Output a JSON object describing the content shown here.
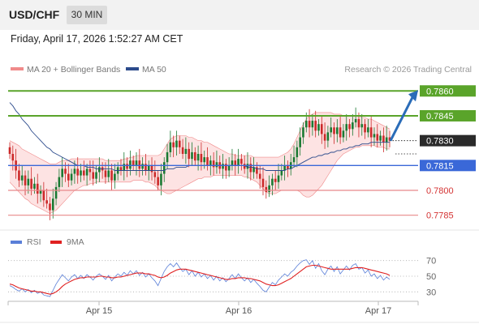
{
  "header": {
    "symbol": "USD/CHF",
    "timeframe": "30 MIN",
    "datetime": "Friday, April 17, 2026 1:52:27 AM CET"
  },
  "main_legend": {
    "bb_label": "MA 20 + Bollinger Bands",
    "ma50_label": "MA 50",
    "credit": "Research © 2026 Trading Central"
  },
  "rsi_legend": {
    "rsi_label": "RSI",
    "ma9_label": "9MA"
  },
  "colors": {
    "bullish_candle": "#1a7a33",
    "bearish_candle": "#cc2a2a",
    "resistance": "#5aa42a",
    "support": "#e8898a",
    "pivot": "#3a68d8",
    "ma50": "#2c4b8c",
    "bb_fill": "#fde3e3",
    "bb_line": "#f08a8a",
    "arrow": "#2a6cb8",
    "rsi": "#5a7fd8",
    "rsi_ma": "#e02020",
    "current_price_bg": "#2a2a2a"
  },
  "chart_data": [
    {
      "type": "candlestick",
      "title": "USD/CHF",
      "timeframe": "30 MIN",
      "x_tick_labels": [
        "Apr 15",
        "Apr 16",
        "Apr 17"
      ],
      "ylim": [
        0.7778,
        0.7866
      ],
      "current_price": 0.783,
      "levels": [
        {
          "value": 0.786,
          "label": "0.7860",
          "kind": "resistance"
        },
        {
          "value": 0.7845,
          "label": "0.7845",
          "kind": "resistance"
        },
        {
          "value": 0.7815,
          "label": "0.7815",
          "kind": "pivot"
        },
        {
          "value": 0.78,
          "label": "0.7800",
          "kind": "support"
        },
        {
          "value": 0.7785,
          "label": "0.7785",
          "kind": "support"
        }
      ],
      "current_price_label": "0.7830",
      "projection": {
        "from": 0.783,
        "to": 0.786
      },
      "closes": [
        0.7822,
        0.7818,
        0.7812,
        0.7806,
        0.7809,
        0.7803,
        0.7807,
        0.7801,
        0.7804,
        0.7798,
        0.78,
        0.7794,
        0.7792,
        0.7788,
        0.7795,
        0.7802,
        0.7808,
        0.7813,
        0.781,
        0.7806,
        0.781,
        0.7813,
        0.7809,
        0.7812,
        0.7809,
        0.7813,
        0.7811,
        0.7807,
        0.7811,
        0.7814,
        0.7812,
        0.7808,
        0.7812,
        0.7806,
        0.781,
        0.7814,
        0.7812,
        0.7816,
        0.7813,
        0.7818,
        0.7815,
        0.7818,
        0.7813,
        0.7816,
        0.7812,
        0.7815,
        0.7811,
        0.7808,
        0.7803,
        0.781,
        0.7817,
        0.7823,
        0.7829,
        0.7826,
        0.783,
        0.7826,
        0.7822,
        0.7825,
        0.7819,
        0.7823,
        0.7818,
        0.7822,
        0.7817,
        0.782,
        0.7815,
        0.7818,
        0.7814,
        0.7817,
        0.7813,
        0.7816,
        0.7812,
        0.7815,
        0.7818,
        0.7815,
        0.7819,
        0.7816,
        0.7813,
        0.7816,
        0.7811,
        0.7814,
        0.781,
        0.7807,
        0.7802,
        0.7799,
        0.7803,
        0.7807,
        0.7805,
        0.7809,
        0.7812,
        0.7815,
        0.7813,
        0.7817,
        0.782,
        0.7826,
        0.7832,
        0.7838,
        0.7842,
        0.7838,
        0.7842,
        0.7836,
        0.784,
        0.7834,
        0.783,
        0.7835,
        0.7838,
        0.7834,
        0.7838,
        0.7832,
        0.7836,
        0.784,
        0.7837,
        0.7841,
        0.7843,
        0.7838,
        0.784,
        0.7835,
        0.7838,
        0.7832,
        0.7834,
        0.783,
        0.7833,
        0.7829,
        0.7832,
        0.783
      ],
      "ma50": [
        0.7853,
        0.7851,
        0.7848,
        0.7846,
        0.7843,
        0.7841,
        0.7839,
        0.7836,
        0.7834,
        0.7832,
        0.783,
        0.7828,
        0.7826,
        0.7825,
        0.7823,
        0.7822,
        0.7821,
        0.782,
        0.7819,
        0.7818,
        0.7817,
        0.7816,
        0.7815,
        0.7815,
        0.7815,
        0.7814,
        0.7814,
        0.7814,
        0.7813,
        0.7813,
        0.7813,
        0.7813,
        0.7813,
        0.7813,
        0.7812,
        0.7812,
        0.7812,
        0.7812,
        0.7812,
        0.7812,
        0.7812,
        0.7812,
        0.7812,
        0.7812,
        0.7812,
        0.7812,
        0.7812,
        0.7812,
        0.7812,
        0.7812,
        0.7812,
        0.7813,
        0.7813,
        0.7813,
        0.7814,
        0.7814,
        0.7814,
        0.7814,
        0.7815,
        0.7815,
        0.7815,
        0.7815,
        0.7815,
        0.7815,
        0.7815,
        0.7815,
        0.7815,
        0.7815,
        0.7815,
        0.7815,
        0.7815,
        0.7815,
        0.7815,
        0.7815,
        0.7815,
        0.7815,
        0.7815,
        0.7814,
        0.7814,
        0.7814,
        0.7813,
        0.7813,
        0.7813,
        0.7812,
        0.7812,
        0.7812,
        0.7812,
        0.7812,
        0.7812,
        0.7812,
        0.7813,
        0.7813,
        0.7814,
        0.7815,
        0.7816,
        0.7817,
        0.7818,
        0.7819,
        0.782,
        0.782,
        0.7821,
        0.7821,
        0.7822,
        0.7822,
        0.7823,
        0.7823,
        0.7824,
        0.7824,
        0.7825,
        0.7825,
        0.7826,
        0.7826,
        0.7827,
        0.7827,
        0.7828,
        0.7828,
        0.7828,
        0.7829,
        0.7829,
        0.7829,
        0.7829,
        0.7829,
        0.7829,
        0.7829
      ],
      "bb_upper": [
        0.783,
        0.7829,
        0.7828,
        0.7827,
        0.7825,
        0.7824,
        0.7823,
        0.7822,
        0.7821,
        0.782,
        0.7819,
        0.7818,
        0.7817,
        0.7816,
        0.7816,
        0.7816,
        0.7817,
        0.7818,
        0.7818,
        0.7818,
        0.7819,
        0.7819,
        0.7819,
        0.7819,
        0.7819,
        0.7819,
        0.7819,
        0.7819,
        0.7819,
        0.7819,
        0.7819,
        0.7818,
        0.7818,
        0.7818,
        0.7818,
        0.7818,
        0.7818,
        0.7819,
        0.7819,
        0.782,
        0.782,
        0.7821,
        0.7821,
        0.7821,
        0.7821,
        0.7821,
        0.7821,
        0.7821,
        0.7821,
        0.7822,
        0.7825,
        0.7828,
        0.7831,
        0.7832,
        0.7833,
        0.7833,
        0.7833,
        0.7833,
        0.7832,
        0.7832,
        0.7831,
        0.783,
        0.783,
        0.7829,
        0.7829,
        0.7828,
        0.7827,
        0.7826,
        0.7825,
        0.7824,
        0.7823,
        0.7822,
        0.7822,
        0.7821,
        0.7821,
        0.7821,
        0.7821,
        0.7821,
        0.7821,
        0.782,
        0.782,
        0.782,
        0.782,
        0.782,
        0.782,
        0.782,
        0.782,
        0.782,
        0.7821,
        0.7822,
        0.7823,
        0.7825,
        0.7828,
        0.7832,
        0.7836,
        0.784,
        0.7843,
        0.7845,
        0.7846,
        0.7847,
        0.7847,
        0.7847,
        0.7847,
        0.7847,
        0.7847,
        0.7846,
        0.7846,
        0.7846,
        0.7845,
        0.7845,
        0.7845,
        0.7845,
        0.7845,
        0.7845,
        0.7844,
        0.7844,
        0.7843,
        0.7843,
        0.7842,
        0.7841,
        0.784,
        0.7839,
        0.7838,
        0.7837
      ],
      "bb_lower": [
        0.7805,
        0.7803,
        0.7801,
        0.7799,
        0.7797,
        0.7795,
        0.7794,
        0.7792,
        0.7791,
        0.779,
        0.7789,
        0.7788,
        0.7787,
        0.7786,
        0.7787,
        0.7788,
        0.779,
        0.7792,
        0.7794,
        0.7796,
        0.7798,
        0.78,
        0.7801,
        0.7802,
        0.7803,
        0.7803,
        0.7804,
        0.7804,
        0.7805,
        0.7805,
        0.7805,
        0.7805,
        0.7805,
        0.7805,
        0.7805,
        0.7805,
        0.7805,
        0.7805,
        0.7805,
        0.7805,
        0.7806,
        0.7806,
        0.7806,
        0.7806,
        0.7805,
        0.7805,
        0.7804,
        0.7803,
        0.7801,
        0.78,
        0.7799,
        0.7798,
        0.7798,
        0.7799,
        0.78,
        0.7801,
        0.7802,
        0.7803,
        0.7804,
        0.7805,
        0.7806,
        0.7807,
        0.7807,
        0.7808,
        0.7808,
        0.7808,
        0.7809,
        0.7809,
        0.7809,
        0.7809,
        0.7809,
        0.7809,
        0.7809,
        0.7809,
        0.7809,
        0.7809,
        0.7808,
        0.7808,
        0.7807,
        0.7806,
        0.7805,
        0.7803,
        0.7801,
        0.7799,
        0.7798,
        0.7798,
        0.7798,
        0.7799,
        0.78,
        0.78,
        0.78,
        0.78,
        0.78,
        0.78,
        0.7799,
        0.7797,
        0.7796,
        0.7796,
        0.7797,
        0.7799,
        0.7801,
        0.7803,
        0.7806,
        0.7809,
        0.7812,
        0.7815,
        0.7818,
        0.782,
        0.7822,
        0.7823,
        0.7824,
        0.7825,
        0.7826,
        0.7826,
        0.7827,
        0.7827,
        0.7827,
        0.7827,
        0.7827,
        0.7826,
        0.7826,
        0.7826,
        0.7825,
        0.7825
      ]
    },
    {
      "type": "line",
      "title": "RSI",
      "ylim": [
        20,
        80
      ],
      "y_ticks": [
        70,
        50,
        30
      ],
      "x_tick_labels": [
        "Apr 15",
        "Apr 16",
        "Apr 17"
      ],
      "series": [
        {
          "name": "RSI",
          "values": [
            38,
            36,
            33,
            31,
            34,
            30,
            33,
            29,
            32,
            28,
            30,
            26,
            25,
            24,
            32,
            40,
            46,
            52,
            48,
            44,
            49,
            52,
            47,
            51,
            47,
            52,
            49,
            45,
            50,
            53,
            50,
            46,
            51,
            44,
            49,
            53,
            50,
            55,
            51,
            57,
            53,
            57,
            51,
            55,
            49,
            53,
            48,
            44,
            38,
            47,
            56,
            62,
            66,
            62,
            67,
            61,
            56,
            59,
            52,
            57,
            50,
            55,
            49,
            53,
            47,
            51,
            45,
            50,
            44,
            48,
            43,
            47,
            52,
            47,
            53,
            48,
            44,
            48,
            42,
            46,
            41,
            37,
            32,
            30,
            36,
            42,
            39,
            45,
            49,
            53,
            50,
            55,
            58,
            63,
            67,
            70,
            71,
            65,
            70,
            60,
            66,
            57,
            52,
            59,
            63,
            56,
            62,
            53,
            58,
            63,
            58,
            64,
            66,
            59,
            61,
            54,
            58,
            50,
            53,
            47,
            51,
            45,
            49,
            46
          ]
        },
        {
          "name": "9MA",
          "values": [
            40,
            39,
            37,
            35,
            34,
            33,
            32,
            31,
            31,
            30,
            30,
            29,
            28,
            27,
            28,
            30,
            33,
            37,
            40,
            42,
            44,
            46,
            47,
            48,
            48,
            49,
            49,
            49,
            49,
            50,
            50,
            49,
            49,
            48,
            48,
            49,
            49,
            50,
            51,
            52,
            53,
            54,
            54,
            54,
            53,
            53,
            52,
            51,
            49,
            48,
            49,
            51,
            54,
            56,
            58,
            59,
            59,
            59,
            58,
            57,
            56,
            55,
            54,
            53,
            52,
            51,
            50,
            49,
            48,
            47,
            46,
            46,
            47,
            47,
            48,
            48,
            48,
            47,
            47,
            46,
            45,
            44,
            42,
            40,
            39,
            38,
            38,
            39,
            41,
            43,
            45,
            47,
            50,
            53,
            56,
            59,
            62,
            63,
            64,
            64,
            63,
            62,
            61,
            60,
            59,
            59,
            59,
            59,
            59,
            59,
            59,
            60,
            61,
            61,
            61,
            60,
            59,
            58,
            57,
            56,
            55,
            54,
            53,
            51
          ]
        }
      ]
    }
  ]
}
